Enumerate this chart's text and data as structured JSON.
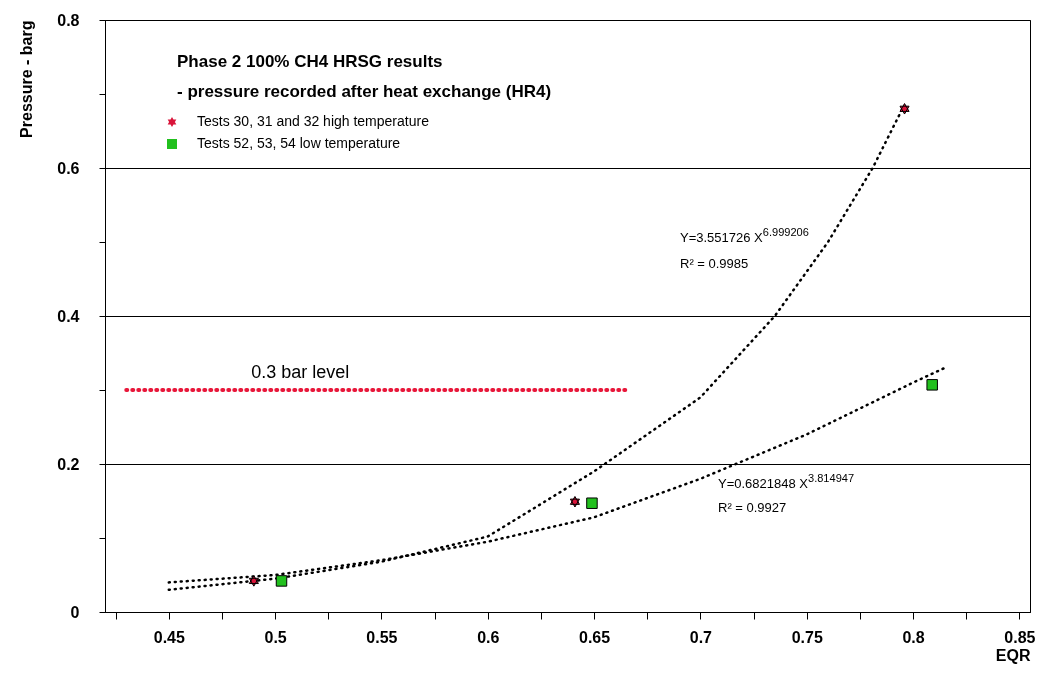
{
  "chart_data": {
    "type": "scatter",
    "title": "Phase 2 100% CH4 HRSG results",
    "subtitle": "- pressure recorded after heat exchange (HR4)",
    "xlabel": "EQR",
    "ylabel": "Pressure - barg",
    "xlim": [
      0.42,
      0.855
    ],
    "ylim": [
      0,
      0.8
    ],
    "xticks": [
      {
        "value": 0.425,
        "label": null
      },
      0.45,
      {
        "value": 0.475,
        "label": null
      },
      0.5,
      {
        "value": 0.525,
        "label": null
      },
      0.55,
      {
        "value": 0.575,
        "label": null
      },
      0.6,
      {
        "value": 0.625,
        "label": null
      },
      0.65,
      {
        "value": 0.675,
        "label": null
      },
      0.7,
      {
        "value": 0.725,
        "label": null
      },
      0.75,
      {
        "value": 0.775,
        "label": null
      },
      0.8,
      {
        "value": 0.825,
        "label": null
      },
      0.85
    ],
    "yticks": [
      0,
      {
        "value": 0.1,
        "label": null
      },
      0.2,
      {
        "value": 0.3,
        "label": null
      },
      0.4,
      {
        "value": 0.5,
        "label": null
      },
      0.6,
      {
        "value": 0.7,
        "label": null
      },
      0.8
    ],
    "grid": "y",
    "legend": "top left",
    "series": [
      {
        "type": "line",
        "color": "#000000",
        "line_style": "dotted",
        "x": [
          0.45,
          0.5,
          0.55,
          0.6,
          0.65,
          0.7,
          0.735,
          0.76,
          0.781,
          0.795
        ],
        "values": [
          0.03,
          0.045,
          0.068,
          0.102,
          0.19,
          0.29,
          0.4,
          0.5,
          0.6,
          0.68
        ]
      },
      {
        "type": "line",
        "color": "#000000",
        "line_style": "dotted",
        "x": [
          0.45,
          0.5,
          0.55,
          0.6,
          0.65,
          0.7,
          0.75,
          0.8,
          0.815
        ],
        "values": [
          0.04,
          0.05,
          0.07,
          0.095,
          0.128,
          0.18,
          0.24,
          0.31,
          0.33
        ]
      },
      {
        "type": "line",
        "name": "0.3 bar level",
        "color": "#e8173a",
        "line_style": "dotted",
        "x": [
          0.43,
          0.665
        ],
        "values": [
          0.3,
          0.3
        ]
      },
      {
        "name": "Tests 30, 31 and  32        high temperature",
        "color": "#d9143a",
        "marker": "star",
        "x": [
          0.49,
          0.641,
          0.796
        ],
        "values": [
          0.042,
          0.149,
          0.68
        ]
      },
      {
        "name": "Tests 52, 53, 54          low temperature",
        "color": "#22c01e",
        "marker": "square",
        "x": [
          0.503,
          0.649,
          0.809
        ],
        "values": [
          0.042,
          0.147,
          0.307
        ]
      }
    ],
    "annotations": [
      "Y=3.551726 X$^{6.999206}$",
      "R² = 0.9985",
      "Y=0.6821848 X$^{3.814947}$",
      "R² = 0.9927"
    ]
  }
}
